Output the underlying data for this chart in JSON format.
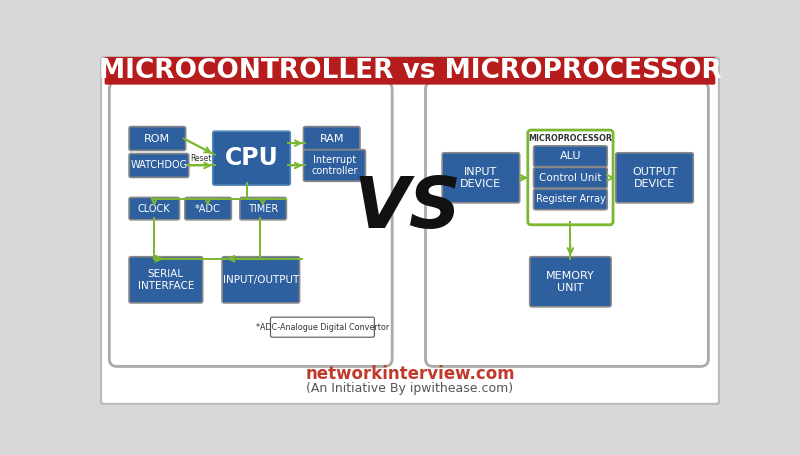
{
  "title": "MICROCONTROLLER vs MICROPROCESSOR",
  "title_bg": "#b71c1c",
  "title_color": "#ffffff",
  "title_fontsize": 19,
  "bg_color": "#ffffff",
  "outer_bg": "#d8d8d8",
  "box_color": "#2e5f9e",
  "box_text_color": "#ffffff",
  "arrow_color": "#7cb82f",
  "vs_color": "#111111",
  "footer_main": "networkinterview.com",
  "footer_sub": "(An Initiative By ipwithease.com)",
  "footer_main_color": "#c0392b",
  "footer_sub_color": "#555555",
  "microprocessor_border": "#7cb82f",
  "note_text": "*ADC-Analogue Digital Convertor",
  "panel_bg": "#ffffff",
  "panel_edge": "#aaaaaa"
}
